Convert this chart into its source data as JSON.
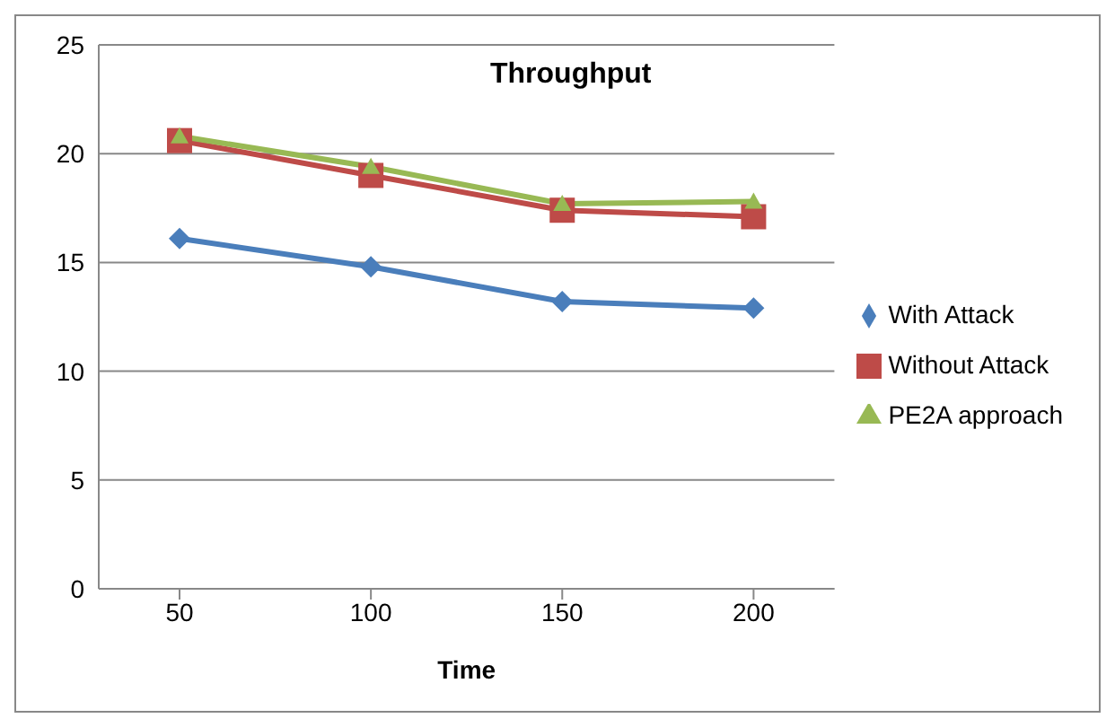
{
  "chart_data": {
    "type": "line",
    "title": "Throughput",
    "xlabel": "Time",
    "categories": [
      "50",
      "100",
      "150",
      "200"
    ],
    "series": [
      {
        "name": "With Attack",
        "color": "#4a7ebb",
        "marker": "diamond",
        "values": [
          16.1,
          14.8,
          13.2,
          12.9
        ]
      },
      {
        "name": "Without Attack",
        "color": "#be4b48",
        "marker": "square",
        "values": [
          20.6,
          19.0,
          17.4,
          17.1
        ]
      },
      {
        "name": "PE2A approach",
        "color": "#98b954",
        "marker": "triangle",
        "values": [
          20.8,
          19.4,
          17.7,
          17.8
        ]
      }
    ],
    "ylim": [
      0,
      25
    ],
    "yticks": [
      0,
      5,
      10,
      15,
      20,
      25
    ],
    "grid": "y",
    "legend": "right"
  }
}
